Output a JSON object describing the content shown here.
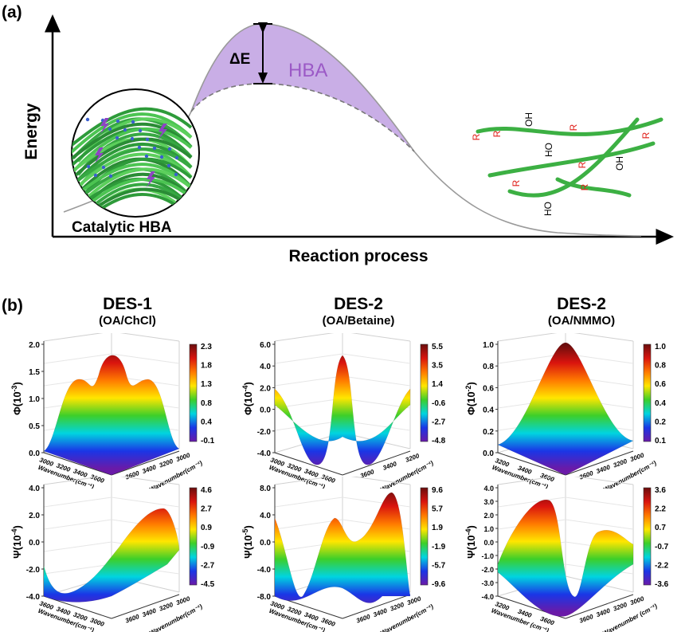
{
  "part_a": {
    "label": "(a)",
    "y_axis_label": "Energy",
    "x_axis_label": "Reaction process",
    "delta_label": "ΔE",
    "region_label": "HBA",
    "inset_label": "Catalytic HBA",
    "molecule_labels": [
      "OH",
      "R",
      "R",
      "HO",
      "R",
      "R",
      "OH",
      "R",
      "R",
      "HO",
      "R"
    ],
    "colors": {
      "curve": "#9a9a9a",
      "fill": "#c9aee6",
      "hba_text": "#9b59c6",
      "fiber": "#3cb043",
      "r_label": "#e0201a"
    }
  },
  "part_b": {
    "label": "(b)",
    "columns": [
      {
        "title": "DES-1",
        "subtitle": "(OA/ChCl)",
        "plots": [
          {
            "symbol": "Φ",
            "exponent": "-3",
            "zticks": [
              "2.0",
              "1.5",
              "1.0",
              "0.5",
              "0.0"
            ],
            "colorbar": [
              "2.3",
              "1.8",
              "1.3",
              "0.8",
              "0.4",
              "-0.1"
            ],
            "xticks": [
              "3000",
              "3200",
              "3400",
              "3600"
            ],
            "yticks": [
              "3000",
              "3200",
              "3400",
              "3600"
            ],
            "xlabel": "Wavenumber(cm⁻¹)",
            "ylabel": "Wavenumber(cm⁻¹)"
          },
          {
            "symbol": "Ψ",
            "exponent": "-4",
            "zticks": [
              "4.0",
              "2.0",
              "0.0",
              "-2.0",
              "-4.0"
            ],
            "colorbar": [
              "4.6",
              "2.7",
              "0.9",
              "-0.9",
              "-2.7",
              "-4.5"
            ],
            "xticks": [
              "3600",
              "3400",
              "3200",
              "3000"
            ],
            "yticks": [
              "3000",
              "3200",
              "3400",
              "3600"
            ],
            "xlabel": "Wavenumber(cm⁻¹)",
            "ylabel": "Wavenumber(cm⁻¹)"
          }
        ]
      },
      {
        "title": "DES-2",
        "subtitle": "(OA/Betaine)",
        "plots": [
          {
            "symbol": "Φ",
            "exponent": "-4",
            "zticks": [
              "6.0",
              "4.0",
              "2.0",
              "0.0",
              "-2.0",
              "-4.0"
            ],
            "colorbar": [
              "5.5",
              "3.5",
              "1.4",
              "-0.6",
              "-2.7",
              "-4.8"
            ],
            "xticks": [
              "3000",
              "3200",
              "3400",
              "3600"
            ],
            "yticks": [
              "3200",
              "3400",
              "3600"
            ],
            "xlabel": "Wavenumber(cm⁻¹)",
            "ylabel": "Wavenumber(cm⁻¹)"
          },
          {
            "symbol": "Ψ",
            "exponent": "-5",
            "zticks": [
              "8.0",
              "4.0",
              "0.0",
              "-4.0",
              "-8.0"
            ],
            "colorbar": [
              "9.6",
              "5.7",
              "1.9",
              "-1.9",
              "-5.7",
              "-9.6"
            ],
            "xticks": [
              "3000",
              "3200",
              "3400",
              "3600"
            ],
            "yticks": [
              "3000",
              "3200",
              "3400",
              "3600"
            ],
            "xlabel": "Wavenumber(cm⁻¹)",
            "ylabel": "Wavenumber(cm⁻¹)"
          }
        ]
      },
      {
        "title": "DES-2",
        "subtitle": "(OA/NMMO)",
        "plots": [
          {
            "symbol": "Φ",
            "exponent": "-2",
            "zticks": [
              "1.0",
              "0.8",
              "0.6",
              "0.4",
              "0.2",
              "0.0"
            ],
            "colorbar": [
              "1.0",
              "0.8",
              "0.6",
              "0.4",
              "0.2",
              "0.1"
            ],
            "xticks": [
              "3200",
              "3400",
              "3600"
            ],
            "yticks": [
              "3000",
              "3200",
              "3400",
              "3600"
            ],
            "xlabel": "Wavenumber(cm⁻¹)",
            "ylabel": "Wavenumber(cm⁻¹)"
          },
          {
            "symbol": "Ψ",
            "exponent": "-4",
            "zticks": [
              "4.0",
              "3.0",
              "2.0",
              "1.0",
              "0.0",
              "-1.0",
              "-2.0",
              "-3.0",
              "-4.0"
            ],
            "colorbar": [
              "3.6",
              "2.2",
              "0.7",
              "-0.7",
              "-2.2",
              "-3.6"
            ],
            "xticks": [
              "3200",
              "3400",
              "3600"
            ],
            "yticks": [
              "3000",
              "3200",
              "3400",
              "3600"
            ],
            "xlabel": "Wavenumber (cm⁻¹)",
            "ylabel": "Wavenumber (cm⁻¹)"
          }
        ]
      }
    ],
    "colormap": [
      "#6a0d0d",
      "#d9140e",
      "#ff7a00",
      "#ffe600",
      "#3ccf2a",
      "#00d4e0",
      "#1a36e6",
      "#6a1aa8"
    ]
  }
}
